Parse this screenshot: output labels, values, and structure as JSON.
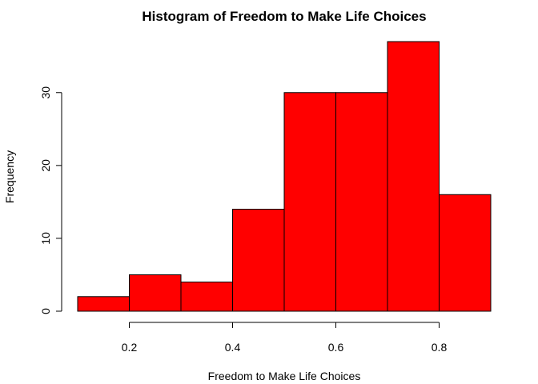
{
  "chart_data": {
    "type": "bar",
    "subtype": "histogram",
    "title": "Histogram of Freedom to Make Life Choices",
    "xlabel": "Freedom to Make Life Choices",
    "ylabel": "Frequency",
    "bins": [
      {
        "start": 0.1,
        "end": 0.2,
        "count": 2
      },
      {
        "start": 0.2,
        "end": 0.3,
        "count": 5
      },
      {
        "start": 0.3,
        "end": 0.4,
        "count": 4
      },
      {
        "start": 0.4,
        "end": 0.5,
        "count": 14
      },
      {
        "start": 0.5,
        "end": 0.6,
        "count": 30
      },
      {
        "start": 0.6,
        "end": 0.7,
        "count": 30
      },
      {
        "start": 0.7,
        "end": 0.8,
        "count": 37
      },
      {
        "start": 0.8,
        "end": 0.9,
        "count": 16
      }
    ],
    "xlim": [
      0.1,
      0.9
    ],
    "ylim": [
      0,
      37
    ],
    "x_ticks": [
      {
        "value": 0.2,
        "label": "0.2"
      },
      {
        "value": 0.4,
        "label": "0.4"
      },
      {
        "value": 0.6,
        "label": "0.6"
      },
      {
        "value": 0.8,
        "label": "0.8"
      }
    ],
    "y_ticks": [
      {
        "value": 0,
        "label": "0"
      },
      {
        "value": 10,
        "label": "10"
      },
      {
        "value": 20,
        "label": "20"
      },
      {
        "value": 30,
        "label": "30"
      }
    ],
    "bar_color": "#ff0000",
    "border_color": "#000000",
    "grid": false,
    "legend": "none"
  }
}
